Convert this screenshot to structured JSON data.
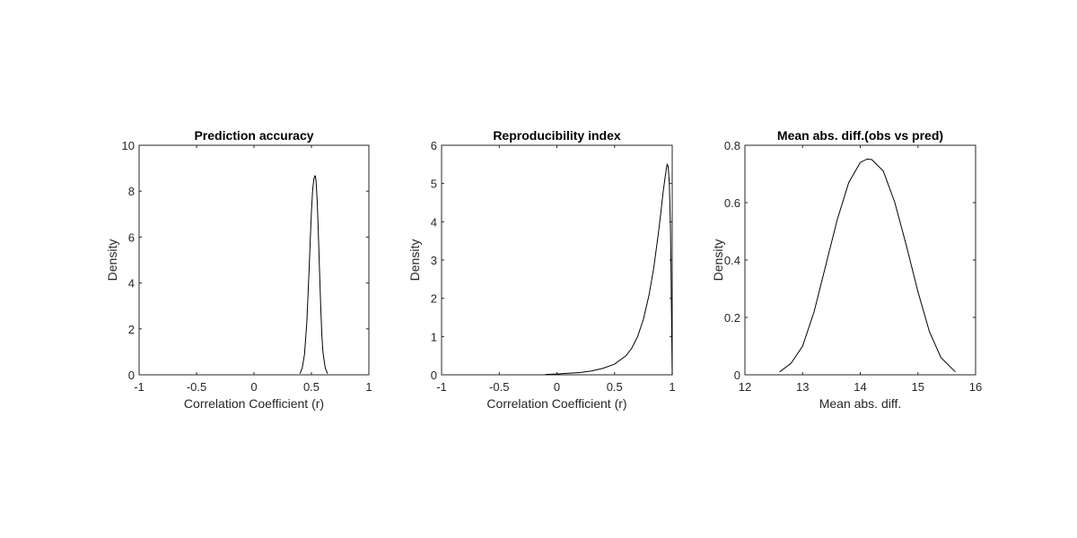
{
  "chart_data": [
    {
      "type": "line",
      "title": "Prediction accuracy",
      "xlabel": "Correlation Coefficient (r)",
      "ylabel": "Density",
      "xlim": [
        -1,
        1
      ],
      "ylim": [
        0,
        10
      ],
      "xticks": [
        -1,
        -0.5,
        0,
        0.5,
        1
      ],
      "xtick_labels": [
        "-1",
        "-0.5",
        "0",
        "0.5",
        "1"
      ],
      "yticks": [
        0,
        2,
        4,
        6,
        8,
        10
      ],
      "ytick_labels": [
        "0",
        "2",
        "4",
        "6",
        "8",
        "10"
      ],
      "grid": false,
      "legend": "none",
      "series": [
        {
          "x": [
            0.4,
            0.42,
            0.44,
            0.46,
            0.48,
            0.49,
            0.5,
            0.51,
            0.52,
            0.53,
            0.535,
            0.54,
            0.55,
            0.56,
            0.57,
            0.58,
            0.59,
            0.6,
            0.62,
            0.64
          ],
          "y": [
            0.05,
            0.3,
            0.9,
            2.3,
            4.6,
            5.9,
            7.1,
            8.0,
            8.5,
            8.67,
            8.65,
            8.45,
            7.6,
            6.2,
            4.6,
            3.1,
            1.8,
            1.0,
            0.3,
            0.05
          ]
        }
      ]
    },
    {
      "type": "line",
      "title": "Reproducibility index",
      "xlabel": "Correlation Coefficient (r)",
      "ylabel": "Density",
      "xlim": [
        -1,
        1
      ],
      "ylim": [
        0,
        6
      ],
      "xticks": [
        -1,
        -0.5,
        0,
        0.5,
        1
      ],
      "xtick_labels": [
        "-1",
        "-0.5",
        "0",
        "0.5",
        "1"
      ],
      "yticks": [
        0,
        1,
        2,
        3,
        4,
        5,
        6
      ],
      "ytick_labels": [
        "0",
        "1",
        "2",
        "3",
        "4",
        "5",
        "6"
      ],
      "grid": false,
      "legend": "none",
      "series": [
        {
          "x": [
            -0.1,
            0.0,
            0.1,
            0.2,
            0.3,
            0.4,
            0.5,
            0.6,
            0.65,
            0.7,
            0.75,
            0.8,
            0.84,
            0.88,
            0.9,
            0.92,
            0.94,
            0.955,
            0.965,
            0.975,
            0.985,
            0.99,
            1.0
          ],
          "y": [
            0.01,
            0.02,
            0.04,
            0.06,
            0.1,
            0.17,
            0.28,
            0.5,
            0.7,
            1.0,
            1.45,
            2.1,
            2.8,
            3.7,
            4.2,
            4.75,
            5.2,
            5.5,
            5.45,
            5.0,
            3.8,
            2.6,
            0.0
          ]
        }
      ]
    },
    {
      "type": "line",
      "title": "Mean abs. diff.(obs vs pred)",
      "xlabel": "Mean abs. diff.",
      "ylabel": "Density",
      "xlim": [
        12,
        16
      ],
      "ylim": [
        0,
        0.8
      ],
      "xticks": [
        12,
        13,
        14,
        15,
        16
      ],
      "xtick_labels": [
        "12",
        "13",
        "14",
        "15",
        "16"
      ],
      "yticks": [
        0,
        0.2,
        0.4,
        0.6,
        0.8
      ],
      "ytick_labels": [
        "0",
        "0.2",
        "0.4",
        "0.6",
        "0.8"
      ],
      "grid": false,
      "legend": "none",
      "series": [
        {
          "x": [
            12.6,
            12.8,
            13.0,
            13.2,
            13.4,
            13.6,
            13.8,
            14.0,
            14.12,
            14.2,
            14.4,
            14.6,
            14.8,
            15.0,
            15.2,
            15.4,
            15.65
          ],
          "y": [
            0.01,
            0.04,
            0.1,
            0.22,
            0.38,
            0.54,
            0.67,
            0.74,
            0.752,
            0.75,
            0.71,
            0.6,
            0.45,
            0.29,
            0.15,
            0.06,
            0.01
          ]
        }
      ]
    }
  ]
}
